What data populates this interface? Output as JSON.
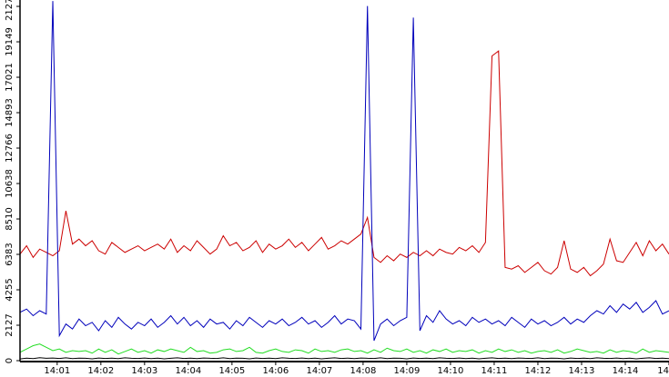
{
  "chart_data": {
    "type": "line",
    "x": [
      0.15,
      0.3,
      0.45,
      0.6,
      0.75,
      0.9,
      1.05,
      1.2,
      1.35,
      1.5,
      1.65,
      1.8,
      1.95,
      2.1,
      2.25,
      2.4,
      2.55,
      2.7,
      2.85,
      3,
      3.15,
      3.3,
      3.45,
      3.6,
      3.75,
      3.9,
      4.05,
      4.2,
      4.35,
      4.5,
      4.65,
      4.8,
      4.95,
      5.1,
      5.25,
      5.4,
      5.55,
      5.7,
      5.85,
      6,
      6.15,
      6.3,
      6.45,
      6.6,
      6.75,
      6.9,
      7.05,
      7.2,
      7.35,
      7.5,
      7.65,
      7.8,
      7.95,
      8.1,
      8.25,
      8.4,
      8.55,
      8.7,
      8.85,
      9,
      9.15,
      9.3,
      9.45,
      9.6,
      9.75,
      9.9,
      10.05,
      10.2,
      10.35,
      10.5,
      10.65,
      10.8,
      10.95,
      11.1,
      11.25,
      11.4,
      11.55,
      11.7,
      11.85,
      12,
      12.15,
      12.3,
      12.45,
      12.6,
      12.75,
      12.9,
      13.05,
      13.2,
      13.35,
      13.5,
      13.65,
      13.8,
      13.95,
      14.1,
      14.25,
      14.4,
      14.55,
      14.7,
      14.85,
      15
    ],
    "series": [
      {
        "color": "#cc0000",
        "values": [
          6400,
          6900,
          6200,
          6700,
          6500,
          6300,
          6600,
          9000,
          7000,
          7300,
          6900,
          7200,
          6600,
          6400,
          7100,
          6800,
          6500,
          6700,
          6900,
          6600,
          6800,
          7000,
          6700,
          7300,
          6500,
          6900,
          6600,
          7200,
          6800,
          6400,
          6700,
          7500,
          6900,
          7100,
          6600,
          6800,
          7200,
          6500,
          7000,
          6700,
          6900,
          7300,
          6800,
          7100,
          6600,
          7000,
          7400,
          6700,
          6900,
          7200,
          7000,
          7300,
          7600,
          8600,
          6200,
          5900,
          6300,
          6000,
          6400,
          6200,
          6500,
          6300,
          6600,
          6300,
          6700,
          6500,
          6400,
          6800,
          6600,
          6900,
          6500,
          7100,
          18300,
          18600,
          5600,
          5500,
          5700,
          5300,
          5600,
          5900,
          5400,
          5200,
          5600,
          7200,
          5500,
          5300,
          5600,
          5100,
          5400,
          5800,
          7300,
          6000,
          5900,
          6500,
          7100,
          6300,
          7200,
          6600,
          7000,
          6400
        ]
      },
      {
        "color": "#0000bb",
        "values": [
          2900,
          3100,
          2700,
          3000,
          2800,
          21600,
          1500,
          2200,
          1900,
          2500,
          2100,
          2300,
          1800,
          2400,
          2000,
          2600,
          2200,
          1900,
          2300,
          2100,
          2500,
          2000,
          2300,
          2700,
          2200,
          2600,
          2100,
          2400,
          2000,
          2500,
          2200,
          2300,
          1900,
          2400,
          2100,
          2600,
          2300,
          2000,
          2400,
          2200,
          2500,
          2100,
          2300,
          2600,
          2200,
          2400,
          2000,
          2300,
          2700,
          2200,
          2500,
          2400,
          1900,
          21300,
          1200,
          2200,
          2500,
          2100,
          2400,
          2600,
          20600,
          1800,
          2700,
          2300,
          3000,
          2500,
          2200,
          2400,
          2100,
          2600,
          2300,
          2500,
          2200,
          2400,
          2100,
          2600,
          2300,
          2000,
          2500,
          2200,
          2400,
          2100,
          2300,
          2600,
          2200,
          2500,
          2300,
          2700,
          3000,
          2800,
          3300,
          2900,
          3400,
          3100,
          3500,
          2900,
          3200,
          3600,
          2800,
          3000
        ]
      },
      {
        "color": "#22dd22",
        "values": [
          500,
          700,
          900,
          1000,
          800,
          600,
          700,
          500,
          600,
          550,
          600,
          450,
          700,
          500,
          650,
          400,
          550,
          700,
          500,
          600,
          450,
          650,
          550,
          700,
          600,
          500,
          800,
          550,
          600,
          450,
          500,
          650,
          700,
          550,
          600,
          800,
          500,
          450,
          600,
          700,
          550,
          500,
          650,
          600,
          450,
          700,
          550,
          600,
          500,
          650,
          700,
          550,
          600,
          450,
          650,
          500,
          750,
          600,
          550,
          700,
          500,
          600,
          450,
          650,
          550,
          700,
          500,
          600,
          550,
          650,
          450,
          600,
          500,
          700,
          550,
          650,
          500,
          600,
          450,
          550,
          600,
          500,
          650,
          450,
          550,
          700,
          600,
          500,
          550,
          450,
          650,
          500,
          600,
          550,
          450,
          700,
          500,
          600,
          550,
          500
        ]
      },
      {
        "color": "#000000",
        "values": [
          100,
          150,
          120,
          180,
          140,
          160,
          130,
          170,
          120,
          150,
          140,
          110,
          160,
          130,
          150,
          120,
          170,
          140,
          130,
          160,
          120,
          150,
          110,
          140,
          170,
          130,
          150,
          120,
          160,
          140,
          130,
          170,
          120,
          150,
          140,
          110,
          160,
          130,
          150,
          120,
          170,
          140,
          130,
          160,
          120,
          150,
          110,
          140,
          170,
          130,
          150,
          120,
          160,
          140,
          130,
          170,
          120,
          150,
          140,
          110,
          160,
          130,
          150,
          120,
          170,
          140,
          130,
          160,
          120,
          150,
          110,
          140,
          170,
          130,
          150,
          120,
          160,
          140,
          130,
          170,
          120,
          150,
          140,
          110,
          160,
          130,
          150,
          120,
          170,
          140,
          130,
          160,
          120,
          150,
          110,
          140,
          170,
          130,
          150,
          120
        ]
      }
    ],
    "xlim": [
      0.15,
      15
    ],
    "xticks": [
      {
        "value": 1,
        "label": "14:01"
      },
      {
        "value": 2,
        "label": "14:02"
      },
      {
        "value": 3,
        "label": "14:03"
      },
      {
        "value": 4,
        "label": "14:04"
      },
      {
        "value": 5,
        "label": "14:05"
      },
      {
        "value": 6,
        "label": "14:06"
      },
      {
        "value": 7,
        "label": "14:07"
      },
      {
        "value": 8,
        "label": "14:08"
      },
      {
        "value": 9,
        "label": "14:09"
      },
      {
        "value": 10,
        "label": "14:10"
      },
      {
        "value": 11,
        "label": "14:11"
      },
      {
        "value": 12,
        "label": "14:12"
      },
      {
        "value": 13,
        "label": "14:13"
      },
      {
        "value": 14,
        "label": "14:14"
      },
      {
        "value": 15,
        "label": "14"
      }
    ],
    "ylim": [
      0,
      21660
    ],
    "yticks": [
      0,
      2127,
      4255,
      6383,
      8510,
      10638,
      12766,
      14893,
      17021,
      19149,
      21277
    ],
    "grid": false
  }
}
